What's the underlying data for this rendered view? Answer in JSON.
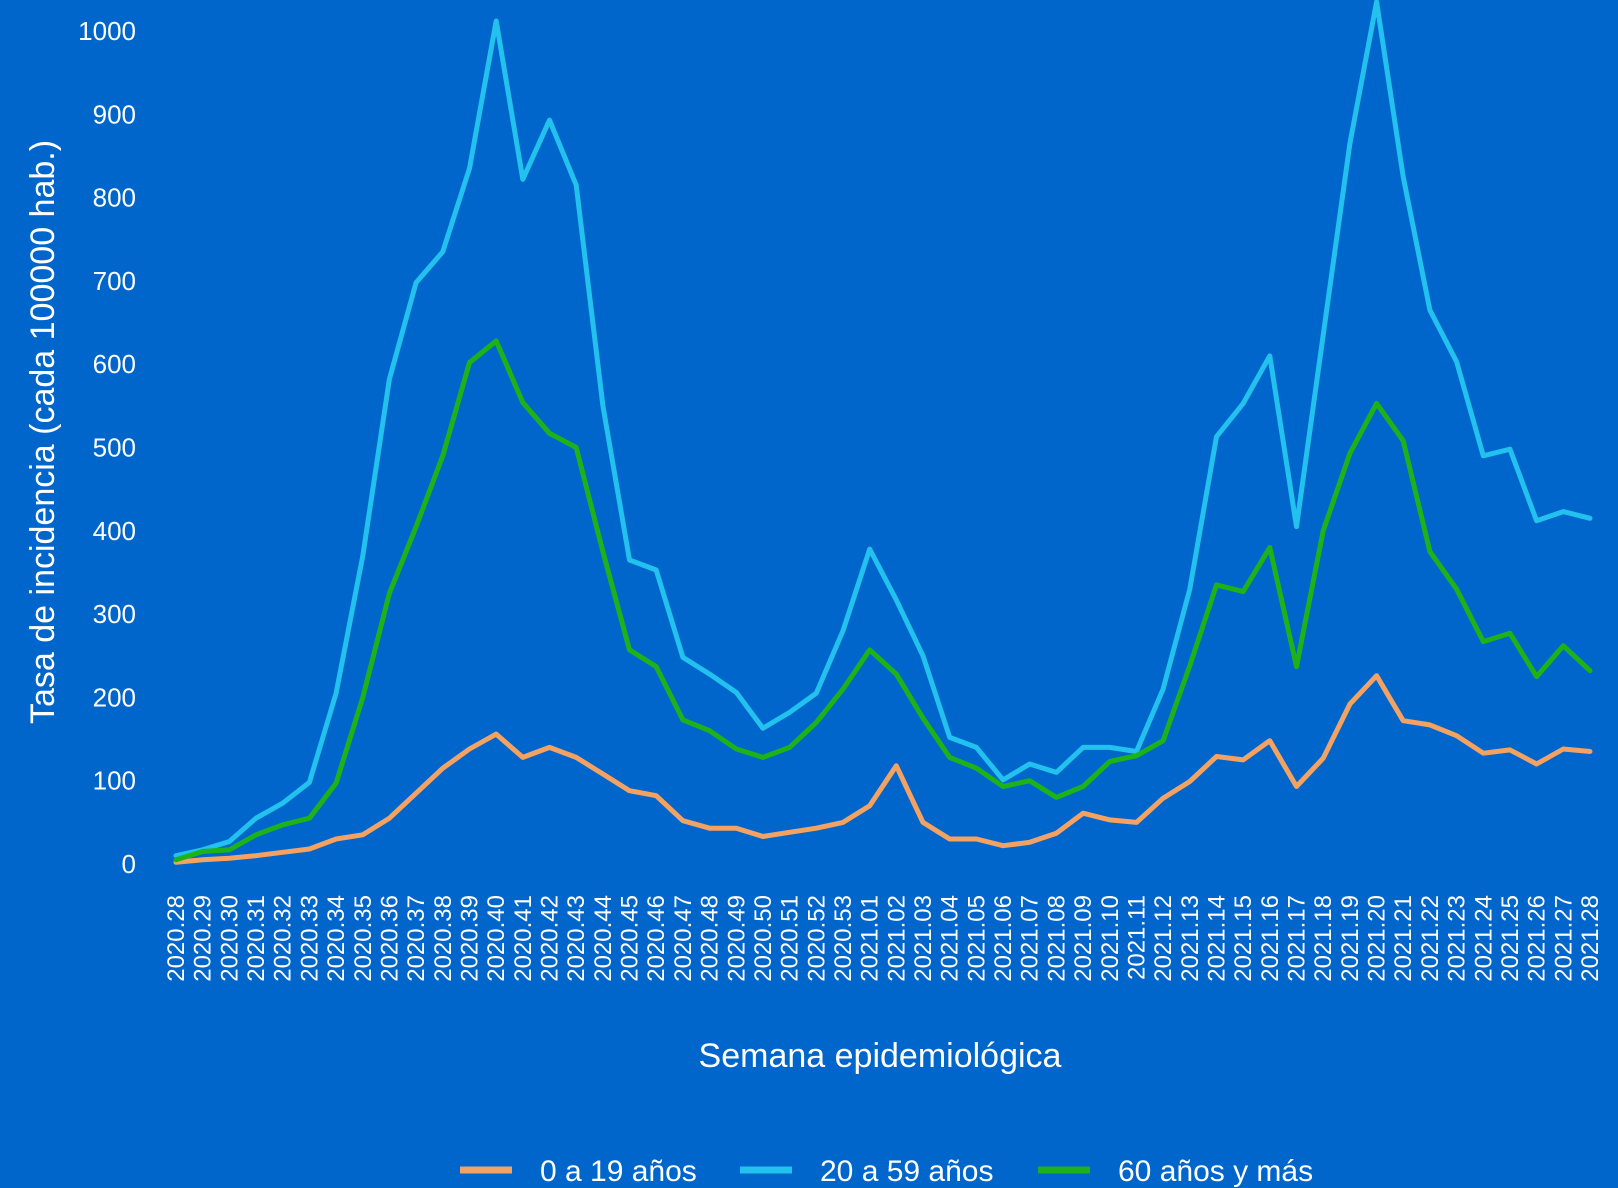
{
  "chart_data": {
    "type": "line",
    "xlabel": "Semana epidemiológica",
    "ylabel": "Tasa de incidencia (cada 100000 hab.)",
    "ylim": [
      0,
      1000
    ],
    "yticks": [
      0,
      100,
      200,
      300,
      400,
      500,
      600,
      700,
      800,
      900,
      1000
    ],
    "grid": false,
    "legend_position": "bottom",
    "x": [
      "2020.28",
      "2020.29",
      "2020.30",
      "2020.31",
      "2020.32",
      "2020.33",
      "2020.34",
      "2020.35",
      "2020.36",
      "2020.37",
      "2020.38",
      "2020.39",
      "2020.40",
      "2020.41",
      "2020.42",
      "2020.43",
      "2020.44",
      "2020.45",
      "2020.46",
      "2020.47",
      "2020.48",
      "2020.49",
      "2020.50",
      "2020.51",
      "2020.52",
      "2020.53",
      "2021.01",
      "2021.02",
      "2021.03",
      "2021.04",
      "2021.05",
      "2021.06",
      "2021.07",
      "2021.08",
      "2021.09",
      "2021.10",
      "2021.11",
      "2021.12",
      "2021.13",
      "2021.14",
      "2021.15",
      "2021.16",
      "2021.17",
      "2021.18",
      "2021.19",
      "2021.20",
      "2021.21",
      "2021.22",
      "2021.23",
      "2021.24",
      "2021.25",
      "2021.26",
      "2021.27",
      "2021.28"
    ],
    "series": [
      {
        "name": "0 a 19 años",
        "color": "#F4A261",
        "values": [
          2,
          5,
          7,
          10,
          14,
          18,
          30,
          35,
          55,
          85,
          115,
          138,
          156,
          128,
          140,
          128,
          108,
          88,
          82,
          52,
          43,
          43,
          33,
          38,
          43,
          50,
          70,
          118,
          50,
          30,
          30,
          22,
          26,
          37,
          61,
          53,
          50,
          79,
          99,
          129,
          125,
          148,
          93,
          127,
          192,
          226,
          172,
          167,
          154,
          133,
          137,
          120,
          138,
          135
        ]
      },
      {
        "name": "20 a 59 años",
        "color": "#22C1EE",
        "values": [
          10,
          17,
          27,
          55,
          73,
          98,
          205,
          370,
          582,
          698,
          735,
          835,
          1012,
          822,
          893,
          815,
          550,
          365,
          353,
          248,
          228,
          206,
          163,
          182,
          205,
          280,
          378,
          317,
          250,
          152,
          140,
          101,
          120,
          110,
          140,
          140,
          135,
          210,
          330,
          513,
          553,
          610,
          405,
          635,
          865,
          1035,
          825,
          665,
          603,
          490,
          498,
          412,
          423,
          415
        ]
      },
      {
        "name": "60 años y más",
        "color": "#1DB318",
        "values": [
          5,
          15,
          17,
          35,
          47,
          55,
          97,
          200,
          325,
          405,
          490,
          602,
          628,
          554,
          517,
          500,
          375,
          257,
          237,
          173,
          160,
          138,
          128,
          140,
          170,
          210,
          257,
          228,
          175,
          128,
          115,
          93,
          100,
          80,
          93,
          123,
          130,
          148,
          238,
          335,
          327,
          380,
          237,
          400,
          493,
          553,
          508,
          375,
          330,
          267,
          277,
          225,
          262,
          232
        ]
      }
    ]
  }
}
